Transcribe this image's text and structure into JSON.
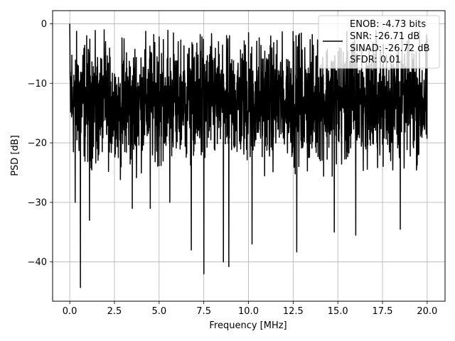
{
  "chart_data": {
    "type": "line",
    "title": "",
    "xlabel": "Frequency [MHz]",
    "ylabel": "PSD [dB]",
    "xlim": [
      -0.96,
      21.0
    ],
    "ylim": [
      -46.6,
      2.2
    ],
    "x_ticks": [
      0.0,
      2.5,
      5.0,
      7.5,
      10.0,
      12.5,
      15.0,
      17.5,
      20.0
    ],
    "x_tick_labels": [
      "0.0",
      "2.5",
      "5.0",
      "7.5",
      "10.0",
      "12.5",
      "15.0",
      "17.5",
      "20.0"
    ],
    "y_ticks": [
      0,
      -10,
      -20,
      -30,
      -40
    ],
    "y_tick_labels": [
      "0",
      "−10",
      "−20",
      "−30",
      "−40"
    ],
    "grid": true,
    "legend_position": "top-right",
    "line_color": "#000000",
    "series": [
      {
        "name": "ENOB: -4.73 bits\nSNR: -26.71 dB\nSINAD: -26.72 dB\nSFDR: 0.01",
        "x_range": [
          0.0,
          20.0
        ],
        "approx_points": 2048,
        "typical_level_db": -13,
        "typical_band_db": [
          -26,
          -3
        ],
        "peaks": [
          {
            "x": 0.0,
            "y": 0.0
          },
          {
            "x": 2.0,
            "y": -3.0
          },
          {
            "x": 5.0,
            "y": -2.2
          },
          {
            "x": 7.3,
            "y": -1.8
          },
          {
            "x": 10.0,
            "y": -1.5
          },
          {
            "x": 12.5,
            "y": -1.3
          }
        ],
        "dips": [
          {
            "x": 0.3,
            "y": -30.0
          },
          {
            "x": 0.6,
            "y": -44.3
          },
          {
            "x": 1.1,
            "y": -33.0
          },
          {
            "x": 3.5,
            "y": -31.0
          },
          {
            "x": 4.5,
            "y": -31.0
          },
          {
            "x": 5.6,
            "y": -30.0
          },
          {
            "x": 6.8,
            "y": -38.0
          },
          {
            "x": 7.5,
            "y": -42.0
          },
          {
            "x": 8.6,
            "y": -40.0
          },
          {
            "x": 8.9,
            "y": -40.8
          },
          {
            "x": 10.2,
            "y": -37.0
          },
          {
            "x": 12.7,
            "y": -38.3
          },
          {
            "x": 14.8,
            "y": -35.0
          },
          {
            "x": 16.0,
            "y": -35.5
          },
          {
            "x": 18.5,
            "y": -34.5
          }
        ]
      }
    ]
  },
  "legend": {
    "lines": [
      "ENOB: -4.73 bits",
      "SNR: -26.71 dB",
      "SINAD: -26.72 dB",
      "SFDR: 0.01"
    ]
  }
}
